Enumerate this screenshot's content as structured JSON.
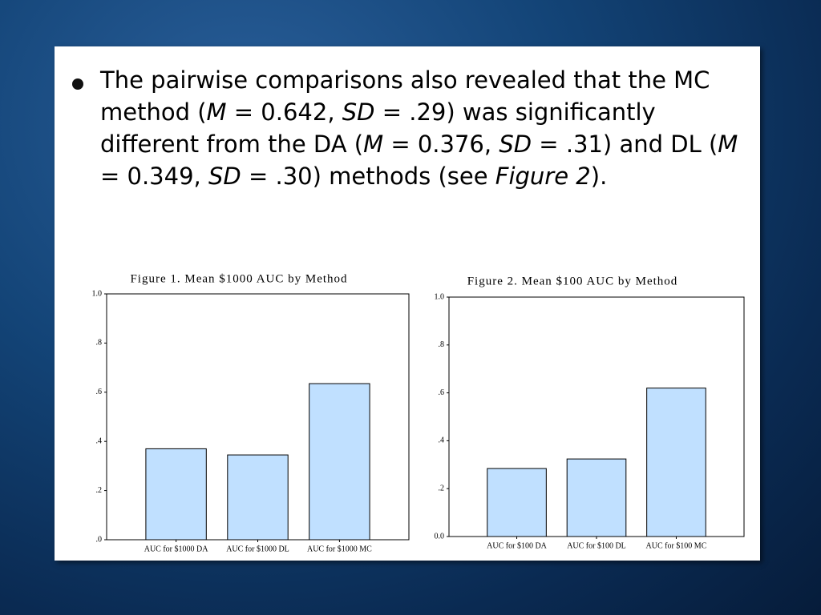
{
  "text": [
    {
      "text": "The pairwise comparisons also revealed that the MC method ("
    },
    {
      "text": "M",
      "italic": true
    },
    {
      "text": " = 0.642, "
    },
    {
      "text": "SD",
      "italic": true
    },
    {
      "text": " = .29) was significantly different from the DA ("
    },
    {
      "text": "M",
      "italic": true
    },
    {
      "text": " = 0.376, "
    },
    {
      "text": "SD",
      "italic": true
    },
    {
      "text": " = .31) and DL ("
    },
    {
      "text": "M",
      "italic": true
    },
    {
      "text": " = 0.349, "
    },
    {
      "text": "SD",
      "italic": true
    },
    {
      "text": " = .30) methods (see "
    },
    {
      "text": "Figure 2",
      "italic": true
    },
    {
      "text": ")."
    }
  ],
  "chart_data": [
    {
      "type": "bar",
      "title": "Figure 1. Mean $1000 AUC by Method",
      "categories": [
        "AUC for $1000 DA",
        "AUC for $1000 DL",
        "AUC for $1000 MC"
      ],
      "values": [
        0.37,
        0.345,
        0.635
      ],
      "color": "#c0e0ff",
      "ylim": [
        0,
        1
      ],
      "yticks": [
        {
          "value": 0,
          "label": ".0"
        },
        {
          "value": 0.2,
          "label": ".2"
        },
        {
          "value": 0.4,
          "label": ".4"
        },
        {
          "value": 0.6,
          "label": ".6"
        },
        {
          "value": 0.8,
          "label": ".8"
        },
        {
          "value": 1,
          "label": "1.0"
        }
      ]
    },
    {
      "type": "bar",
      "title": "Figure 2. Mean $100 AUC by Method",
      "categories": [
        "AUC for $100 DA",
        "AUC for $100 DL",
        "AUC for $100 MC"
      ],
      "values": [
        0.284,
        0.324,
        0.62
      ],
      "color": "#c0e0ff",
      "ylim": [
        0,
        1
      ],
      "yticks": [
        {
          "value": 0,
          "label": "0.0"
        },
        {
          "value": 0.2,
          "label": ".2"
        },
        {
          "value": 0.4,
          "label": ".4"
        },
        {
          "value": 0.6,
          "label": ".6"
        },
        {
          "value": 0.8,
          "label": ".8"
        },
        {
          "value": 1,
          "label": "1.0"
        }
      ]
    }
  ]
}
